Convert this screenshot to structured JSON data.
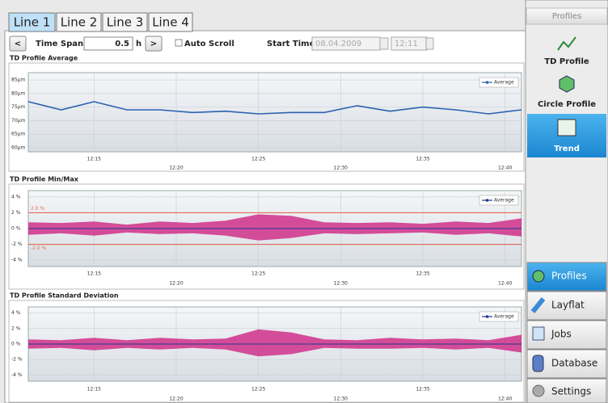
{
  "tabs": [
    "Line 1",
    "Line 2",
    "Line 3",
    "Line 4"
  ],
  "toolbar": {
    "prev": "<",
    "time_span_label": "Time Span",
    "time_span": 0.5,
    "time_span_unit": "h",
    "next": ">",
    "auto_scroll": "Auto Scroll",
    "start_time_label": "Start Time",
    "start_date": "08.04.2009",
    "start_clock": "12:11"
  },
  "chart_data": [
    {
      "type": "line",
      "title": "TD Profile Average",
      "x": [
        "12:11",
        "12:13",
        "12:15",
        "12:17",
        "12:19",
        "12:21",
        "12:23",
        "12:25",
        "12:27",
        "12:29",
        "12:31",
        "12:33",
        "12:35",
        "12:37",
        "12:39",
        "12:41"
      ],
      "xlim": [
        "12:11",
        "12:41"
      ],
      "xticks": [
        "12:15",
        "12:20",
        "12:25",
        "12:30",
        "12:35",
        "12:40"
      ],
      "ylim": [
        58.5,
        87.7
      ],
      "yticks": [
        {
          "value": 85,
          "label": "85µm"
        },
        {
          "value": 80,
          "label": "80µm"
        },
        {
          "value": 75,
          "label": "75µm"
        },
        {
          "value": 70,
          "label": "70µm"
        },
        {
          "value": 65,
          "label": "65µm"
        },
        {
          "value": 60,
          "label": "60µm"
        }
      ],
      "grid": true,
      "series": [
        {
          "name": "Average",
          "color": "#2a62b0",
          "values": [
            77,
            74,
            77,
            74,
            74,
            73,
            73.5,
            72.5,
            73,
            73,
            75.5,
            73.5,
            75,
            74,
            72.5,
            74
          ]
        }
      ]
    },
    {
      "type": "band",
      "title": "TD Profile Min/Max",
      "x": [
        "12:11",
        "12:13",
        "12:15",
        "12:17",
        "12:19",
        "12:21",
        "12:23",
        "12:25",
        "12:27",
        "12:29",
        "12:31",
        "12:33",
        "12:35",
        "12:37",
        "12:39",
        "12:41"
      ],
      "xlim": [
        "12:11",
        "12:41"
      ],
      "xticks": [
        "12:15",
        "12:20",
        "12:25",
        "12:30",
        "12:35",
        "12:40"
      ],
      "ylim": [
        -4.8,
        4.8
      ],
      "yticks": [
        {
          "value": 4,
          "label": "4 %"
        },
        {
          "value": 2,
          "label": "2 %"
        },
        {
          "value": 0,
          "label": "0 %"
        },
        {
          "value": -2,
          "label": "-2 %"
        },
        {
          "value": -4,
          "label": "-4 %"
        }
      ],
      "grid": true,
      "series": [
        {
          "name": "Average",
          "color": "#1f3a8a",
          "values": [
            0,
            0,
            0,
            0,
            0,
            0,
            0,
            0,
            0,
            0,
            0,
            0,
            0,
            0,
            0,
            0
          ]
        }
      ],
      "band": {
        "color": "#d0308a",
        "upper": [
          0.8,
          0.7,
          0.9,
          0.5,
          0.9,
          0.7,
          1.0,
          1.8,
          1.6,
          0.8,
          0.7,
          0.8,
          0.6,
          0.9,
          0.7,
          1.3
        ],
        "lower": [
          -0.8,
          -0.6,
          -0.9,
          -0.5,
          -0.7,
          -0.6,
          -0.9,
          -1.5,
          -1.2,
          -0.6,
          -0.7,
          -0.6,
          -0.5,
          -0.8,
          -0.6,
          -1.0
        ]
      },
      "limits": {
        "color": "#e06a55",
        "lines": [
          {
            "value": 2.0,
            "label": "2.0 %"
          },
          {
            "value": -2.0,
            "label": "-2.0 %"
          }
        ]
      }
    },
    {
      "type": "band",
      "title": "TD Profile Standard Deviation",
      "x": [
        "12:11",
        "12:13",
        "12:15",
        "12:17",
        "12:19",
        "12:21",
        "12:23",
        "12:25",
        "12:27",
        "12:29",
        "12:31",
        "12:33",
        "12:35",
        "12:37",
        "12:39",
        "12:41"
      ],
      "xlim": [
        "12:11",
        "12:41"
      ],
      "xticks": [
        "12:15",
        "12:20",
        "12:25",
        "12:30",
        "12:35",
        "12:40"
      ],
      "ylim": [
        -4.8,
        4.8
      ],
      "yticks": [
        {
          "value": 4,
          "label": "4 %"
        },
        {
          "value": 2,
          "label": "2 %"
        },
        {
          "value": 0,
          "label": "0 %"
        },
        {
          "value": -2,
          "label": "-2 %"
        },
        {
          "value": -4,
          "label": "-4 %"
        }
      ],
      "grid": true,
      "series": [
        {
          "name": "Average",
          "color": "#1f3a8a",
          "values": [
            0,
            0,
            0,
            0,
            0,
            0,
            0,
            0,
            0,
            0,
            0,
            0,
            0,
            0,
            0,
            0
          ]
        }
      ],
      "band": {
        "color": "#d0308a",
        "upper": [
          0.6,
          0.5,
          0.8,
          0.5,
          0.8,
          0.6,
          0.7,
          1.9,
          1.5,
          0.6,
          0.5,
          0.8,
          0.6,
          0.7,
          0.5,
          1.2
        ],
        "lower": [
          -0.6,
          -0.5,
          -0.8,
          -0.5,
          -0.7,
          -0.5,
          -0.7,
          -1.6,
          -1.3,
          -0.5,
          -0.6,
          -0.6,
          -0.5,
          -0.7,
          -0.5,
          -1.1
        ]
      }
    }
  ],
  "sidebar": {
    "header": "Profiles",
    "views": [
      "TD Profile",
      "Circle Profile",
      "Trend"
    ],
    "nav": [
      "Profiles",
      "Layflat",
      "Jobs",
      "Database",
      "Settings"
    ]
  }
}
